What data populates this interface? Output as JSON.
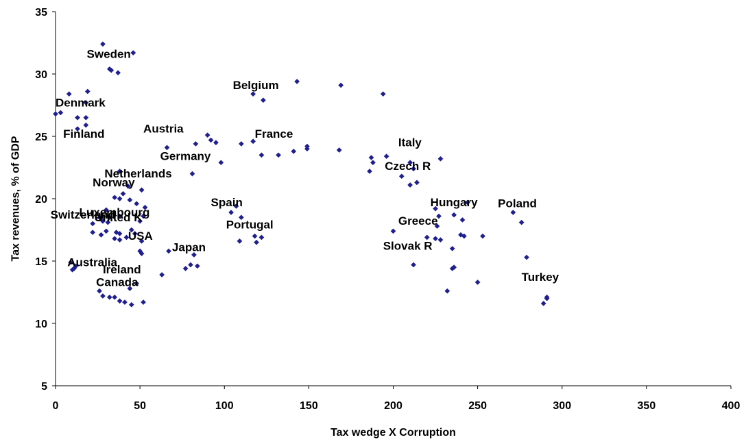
{
  "chart_data": {
    "type": "scatter",
    "xlabel": "Tax wedge X Corruption",
    "ylabel": "Tax revenues, % of GDP",
    "xlim": [
      0,
      400
    ],
    "ylim": [
      5,
      35
    ],
    "x_ticks": [
      "0",
      "50",
      "100",
      "150",
      "200",
      "250",
      "300",
      "350",
      "400"
    ],
    "y_ticks": [
      "5",
      "10",
      "15",
      "20",
      "25",
      "30",
      "35"
    ],
    "grid": false,
    "marker_color": "#1f1f8f",
    "points": [
      [
        28,
        32.4
      ],
      [
        46,
        31.7
      ],
      [
        32,
        30.4
      ],
      [
        33,
        30.3
      ],
      [
        37,
        30.1
      ],
      [
        8,
        28.4
      ],
      [
        19,
        28.6
      ],
      [
        0,
        26.8
      ],
      [
        3,
        26.9
      ],
      [
        13,
        26.5
      ],
      [
        18,
        26.5
      ],
      [
        18,
        27.7
      ],
      [
        13,
        25.6
      ],
      [
        18,
        25.9
      ],
      [
        66,
        24.1
      ],
      [
        83,
        24.4
      ],
      [
        90,
        25.1
      ],
      [
        92,
        24.7
      ],
      [
        95,
        24.5
      ],
      [
        98,
        22.9
      ],
      [
        81,
        22.0
      ],
      [
        110,
        24.4
      ],
      [
        117,
        24.6
      ],
      [
        117,
        28.4
      ],
      [
        123,
        27.9
      ],
      [
        122,
        23.5
      ],
      [
        132,
        23.5
      ],
      [
        141,
        23.8
      ],
      [
        143,
        29.4
      ],
      [
        149,
        24.2
      ],
      [
        149,
        24.0
      ],
      [
        168,
        23.9
      ],
      [
        169,
        29.1
      ],
      [
        194,
        28.4
      ],
      [
        187,
        23.3
      ],
      [
        188,
        22.9
      ],
      [
        186,
        22.2
      ],
      [
        196,
        23.4
      ],
      [
        210,
        22.9
      ],
      [
        212,
        22.4
      ],
      [
        228,
        23.2
      ],
      [
        205,
        21.8
      ],
      [
        210,
        21.1
      ],
      [
        214,
        21.3
      ],
      [
        38,
        22.2
      ],
      [
        43,
        21.0
      ],
      [
        51,
        20.7
      ],
      [
        40,
        20.4
      ],
      [
        35,
        20.1
      ],
      [
        38,
        20.0
      ],
      [
        44,
        19.9
      ],
      [
        48,
        19.6
      ],
      [
        53,
        19.3
      ],
      [
        30,
        19.1
      ],
      [
        26,
        18.5
      ],
      [
        28,
        18.2
      ],
      [
        32,
        18.5
      ],
      [
        31,
        18.1
      ],
      [
        38,
        18.6
      ],
      [
        45,
        17.5
      ],
      [
        47,
        17.2
      ],
      [
        50,
        18.2
      ],
      [
        52,
        18.6
      ],
      [
        22,
        18.0
      ],
      [
        22,
        17.3
      ],
      [
        27,
        17.1
      ],
      [
        30,
        17.4
      ],
      [
        36,
        17.3
      ],
      [
        38,
        17.2
      ],
      [
        35,
        16.8
      ],
      [
        38,
        16.7
      ],
      [
        42,
        16.9
      ],
      [
        51,
        16.6
      ],
      [
        50,
        15.8
      ],
      [
        51,
        15.6
      ],
      [
        67,
        15.8
      ],
      [
        82,
        15.5
      ],
      [
        77,
        14.4
      ],
      [
        80,
        14.7
      ],
      [
        84,
        14.6
      ],
      [
        63,
        13.9
      ],
      [
        9,
        14.9
      ],
      [
        10,
        14.3
      ],
      [
        11,
        14.4
      ],
      [
        12,
        14.6
      ],
      [
        44,
        12.8
      ],
      [
        48,
        13.2
      ],
      [
        26,
        12.6
      ],
      [
        28,
        12.2
      ],
      [
        32,
        12.1
      ],
      [
        35,
        12.1
      ],
      [
        38,
        11.8
      ],
      [
        41,
        11.7
      ],
      [
        45,
        11.5
      ],
      [
        52,
        11.7
      ],
      [
        104,
        18.9
      ],
      [
        107,
        19.4
      ],
      [
        110,
        18.5
      ],
      [
        109,
        16.6
      ],
      [
        118,
        17.0
      ],
      [
        119,
        16.5
      ],
      [
        122,
        16.9
      ],
      [
        200,
        17.4
      ],
      [
        212,
        14.7
      ],
      [
        220,
        16.9
      ],
      [
        226,
        17.8
      ],
      [
        225,
        19.2
      ],
      [
        227,
        18.6
      ],
      [
        225,
        16.8
      ],
      [
        228,
        16.7
      ],
      [
        235,
        16.0
      ],
      [
        236,
        18.7
      ],
      [
        240,
        17.1
      ],
      [
        242,
        17.0
      ],
      [
        241,
        18.3
      ],
      [
        244,
        19.7
      ],
      [
        235,
        14.4
      ],
      [
        236,
        14.5
      ],
      [
        232,
        12.6
      ],
      [
        250,
        13.3
      ],
      [
        253,
        17.0
      ],
      [
        271,
        18.9
      ],
      [
        276,
        18.1
      ],
      [
        279,
        15.3
      ],
      [
        289,
        11.6
      ],
      [
        291,
        12.0
      ],
      [
        291,
        12.1
      ]
    ],
    "labels": [
      {
        "text": "Sweden",
        "x": 18.5,
        "y": 31.3
      },
      {
        "text": "Belgium",
        "x": 105,
        "y": 28.8
      },
      {
        "text": "Denmark",
        "x": 0,
        "y": 27.4
      },
      {
        "text": "Finland",
        "x": 4.5,
        "y": 24.9
      },
      {
        "text": "Austria",
        "x": 52,
        "y": 25.3
      },
      {
        "text": "France",
        "x": 118,
        "y": 24.9
      },
      {
        "text": "Germany",
        "x": 62,
        "y": 23.1
      },
      {
        "text": "Italy",
        "x": 203,
        "y": 24.2
      },
      {
        "text": "Czech R",
        "x": 195,
        "y": 22.3
      },
      {
        "text": "Netherlands",
        "x": 29,
        "y": 21.7
      },
      {
        "text": "Norway",
        "x": 22,
        "y": 21.0
      },
      {
        "text": "Spain",
        "x": 92,
        "y": 19.4
      },
      {
        "text": "Hungary",
        "x": 222,
        "y": 19.4
      },
      {
        "text": "Poland",
        "x": 262,
        "y": 19.3
      },
      {
        "text": "Switzerland",
        "x": -3,
        "y": 18.4
      },
      {
        "text": "Luxembourg",
        "x": 14,
        "y": 18.6
      },
      {
        "text": "United K",
        "x": 23,
        "y": 18.2
      },
      {
        "text": "Greece",
        "x": 203,
        "y": 17.9
      },
      {
        "text": "Portugal",
        "x": 101,
        "y": 17.6
      },
      {
        "text": "USA",
        "x": 43,
        "y": 16.7
      },
      {
        "text": "Japan",
        "x": 69,
        "y": 15.8
      },
      {
        "text": "Slovak R",
        "x": 194,
        "y": 15.9
      },
      {
        "text": "Australia",
        "x": 7,
        "y": 14.6
      },
      {
        "text": "Ireland",
        "x": 28,
        "y": 14.0
      },
      {
        "text": "Canada",
        "x": 24,
        "y": 13.0
      },
      {
        "text": "Turkey",
        "x": 276,
        "y": 13.4
      }
    ]
  }
}
